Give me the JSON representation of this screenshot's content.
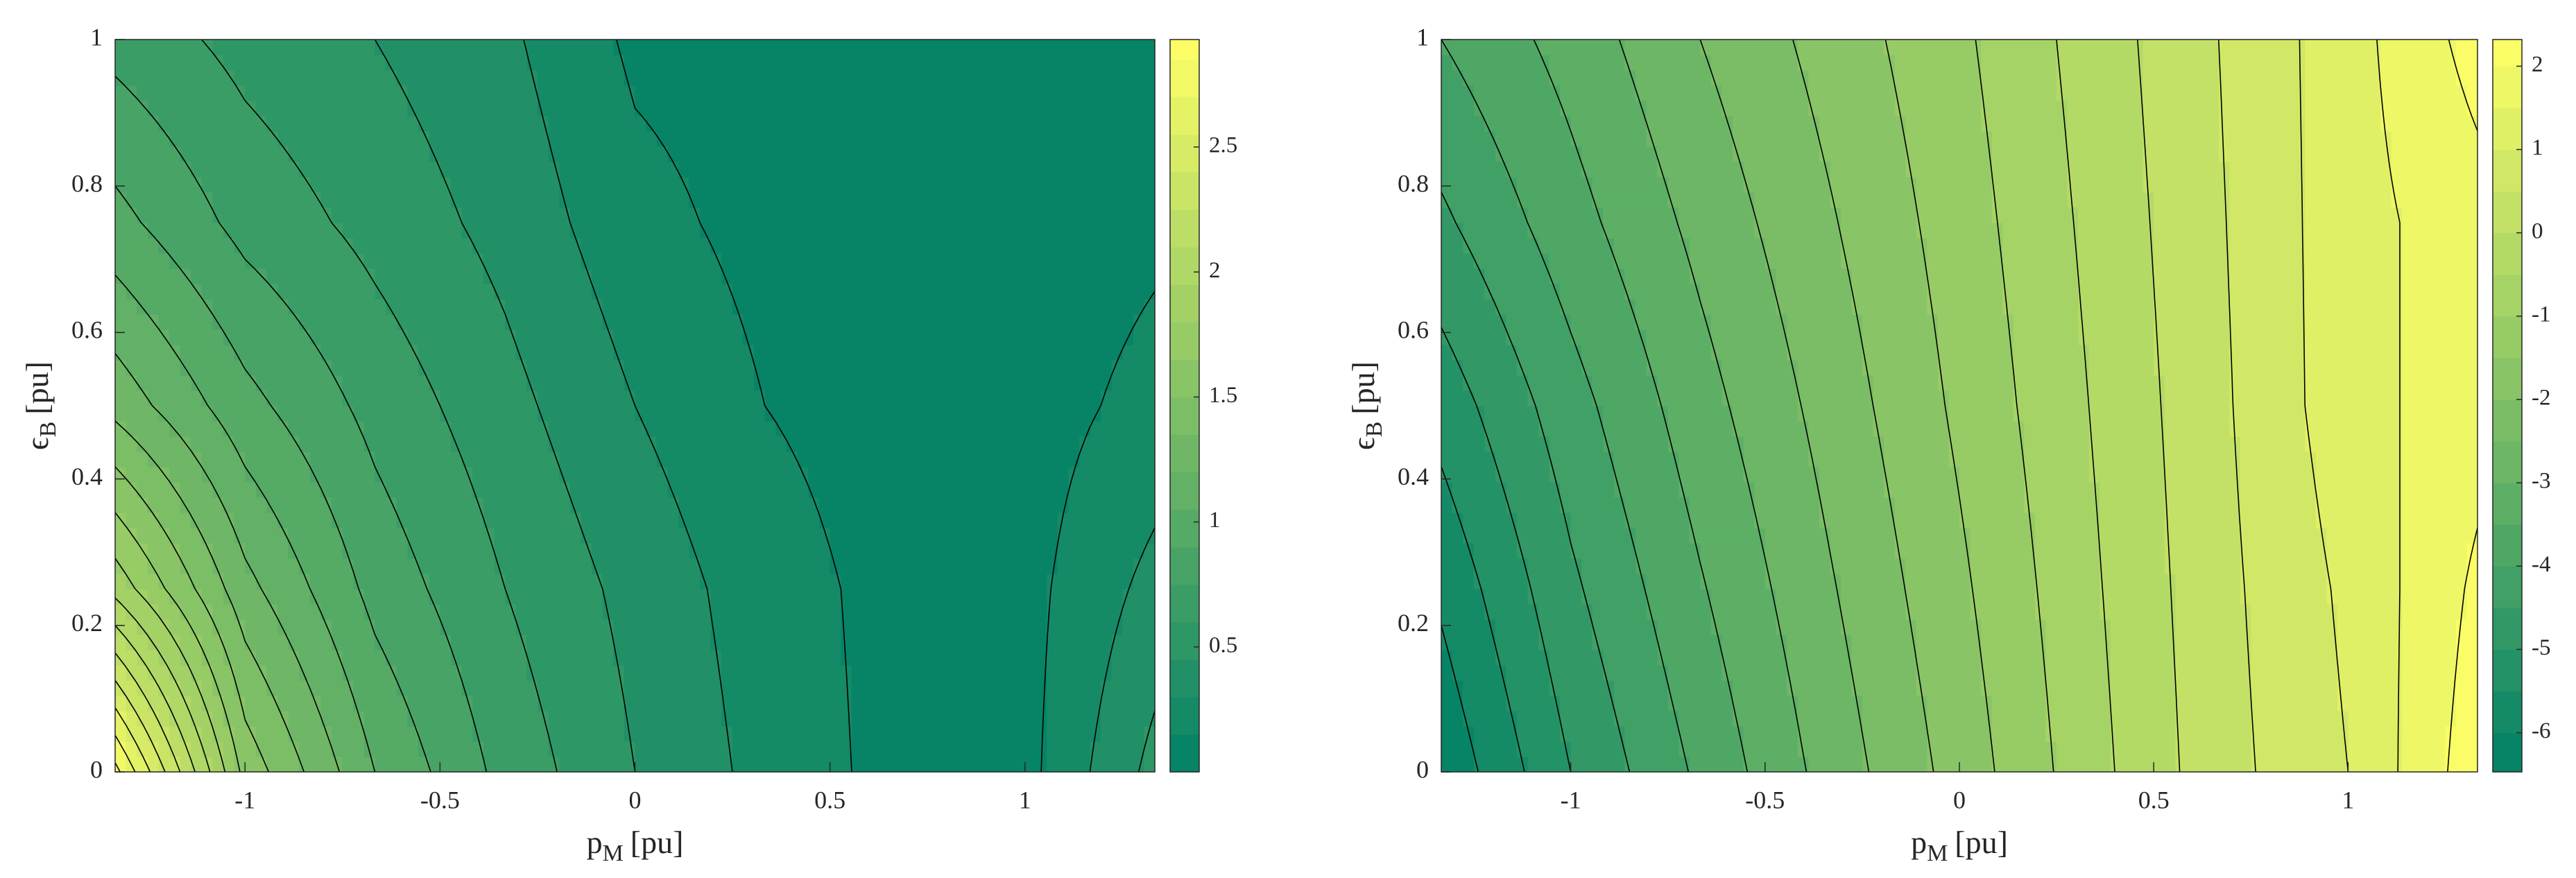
{
  "chart_data": [
    {
      "type": "contour",
      "x": [
        -1.333,
        -1,
        -0.667,
        -0.333,
        0,
        0.333,
        0.667,
        1,
        1.333
      ],
      "y": [
        0,
        0.25,
        0.5,
        0.75,
        1
      ],
      "z": [
        [
          2.9,
          1.6,
          1.05,
          0.7,
          0.45,
          0.25,
          0.1,
          0.1,
          0.5
        ],
        [
          1.9,
          1.25,
          0.85,
          0.6,
          0.4,
          0.22,
          0.1,
          0.1,
          0.35
        ],
        [
          1.3,
          0.95,
          0.7,
          0.5,
          0.3,
          0.15,
          0.08,
          0.08,
          0.2
        ],
        [
          0.95,
          0.7,
          0.55,
          0.4,
          0.2,
          0.1,
          0.06,
          0.06,
          0.12
        ],
        [
          0.7,
          0.55,
          0.45,
          0.33,
          0.12,
          0.08,
          0.05,
          0.05,
          0.08
        ]
      ],
      "levels": [
        0.15,
        0.3,
        0.45,
        0.6,
        0.75,
        0.9,
        1.05,
        1.2,
        1.35,
        1.5,
        1.65,
        1.8,
        1.95,
        2.1,
        2.25,
        2.4,
        2.55,
        2.7,
        2.85
      ],
      "colormap": [
        "#008066",
        "#ffff66"
      ],
      "xlim": [
        -1.333,
        1.333
      ],
      "ylim": [
        0,
        1
      ],
      "xticks": [
        -1,
        -0.5,
        0,
        0.5,
        1
      ],
      "yticks": [
        0,
        0.2,
        0.4,
        0.6,
        0.8,
        1
      ],
      "clim": [
        0,
        2.93
      ],
      "cticks": [
        0.5,
        1,
        1.5,
        2,
        2.5
      ],
      "xlabel": [
        "p",
        "M",
        "[pu]"
      ],
      "ylabel": [
        "ϵ",
        "B",
        "[pu]"
      ]
    },
    {
      "type": "contour",
      "x": [
        -1.333,
        -1,
        -0.667,
        -0.333,
        0,
        0.333,
        0.667,
        1,
        1.333
      ],
      "y": [
        0,
        0.25,
        0.5,
        0.75,
        1
      ],
      "z": [
        [
          -6.4,
          -5.0,
          -3.9,
          -2.8,
          -1.8,
          -0.7,
          0.3,
          1.0,
          2.3
        ],
        [
          -5.9,
          -4.6,
          -3.55,
          -2.55,
          -1.6,
          -0.6,
          0.35,
          1.1,
          2.1
        ],
        [
          -5.3,
          -4.2,
          -3.2,
          -2.3,
          -1.4,
          -0.5,
          0.4,
          1.3,
          1.8
        ],
        [
          -4.6,
          -3.7,
          -2.85,
          -2.05,
          -1.25,
          -0.4,
          0.45,
          1.3,
          1.8
        ],
        [
          -4.0,
          -3.3,
          -2.5,
          -1.8,
          -1.1,
          -0.3,
          0.5,
          1.3,
          2.2
        ]
      ],
      "levels": [
        -6,
        -5.5,
        -5,
        -4.5,
        -4,
        -3.5,
        -3,
        -2.5,
        -2,
        -1.5,
        -1,
        -0.5,
        0,
        0.5,
        1,
        1.5,
        2
      ],
      "colormap": [
        "#008066",
        "#ffff66"
      ],
      "xlim": [
        -1.333,
        1.333
      ],
      "ylim": [
        0,
        1
      ],
      "xticks": [
        -1,
        -0.5,
        0,
        0.5,
        1
      ],
      "yticks": [
        0,
        0.2,
        0.4,
        0.6,
        0.8,
        1
      ],
      "clim": [
        -6.47,
        2.32
      ],
      "cticks": [
        -6,
        -5,
        -4,
        -3,
        -2,
        -1,
        0,
        1,
        2
      ],
      "xlabel": [
        "p",
        "M",
        "[pu]"
      ],
      "ylabel": [
        "ϵ",
        "B",
        "[pu]"
      ]
    }
  ]
}
